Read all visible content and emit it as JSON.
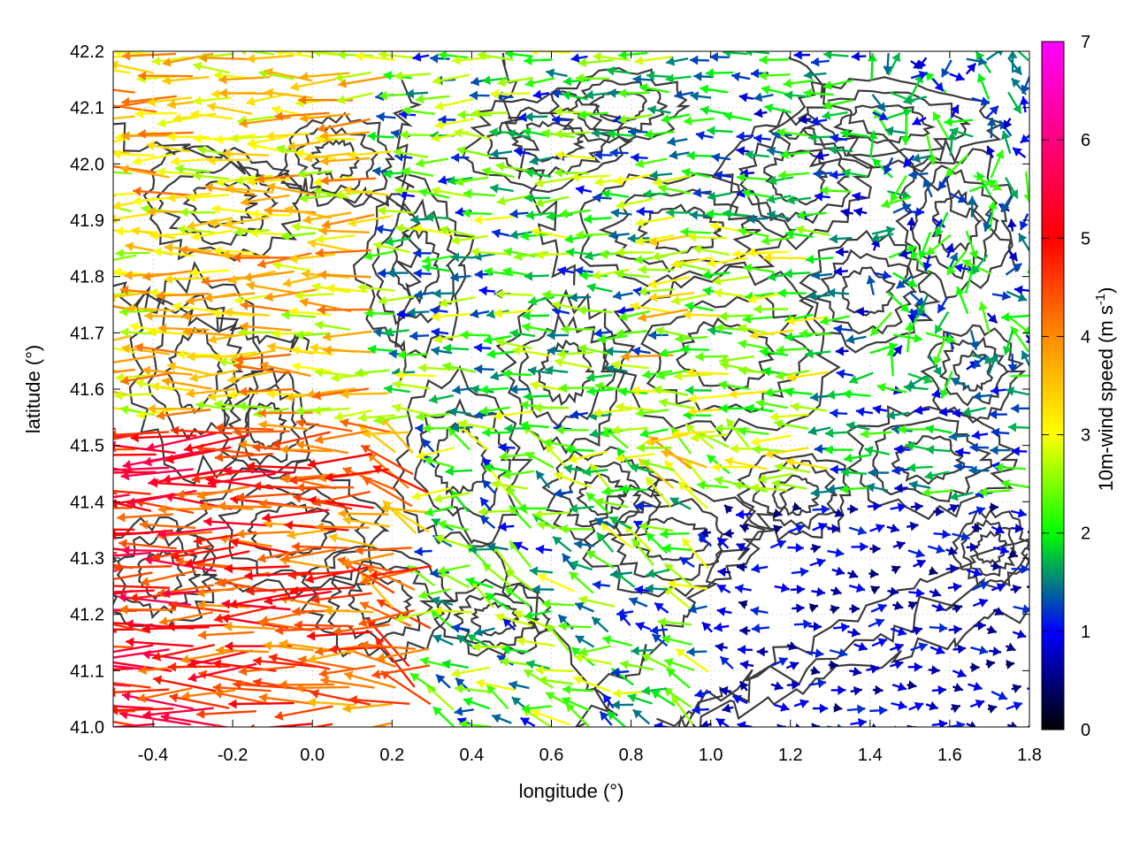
{
  "chart_data": {
    "type": "vector-field",
    "xlabel": "longitude (°)",
    "ylabel": "latitude (°)",
    "xlim": [
      -0.5,
      1.8
    ],
    "ylim": [
      41.0,
      42.2
    ],
    "xticks": [
      "-0.4",
      "-0.2",
      "0.0",
      "0.2",
      "0.4",
      "0.6",
      "0.8",
      "1.0",
      "1.2",
      "1.4",
      "1.6",
      "1.8"
    ],
    "yticks": [
      "41.0",
      "41.1",
      "41.2",
      "41.3",
      "41.4",
      "41.5",
      "41.6",
      "41.7",
      "41.8",
      "41.9",
      "42.0",
      "42.1",
      "42.2"
    ],
    "grid": true,
    "colorbar": {
      "label": "10m-wind speed (m s",
      "label_exponent": "-1",
      "label_close": ")",
      "range": [
        0,
        7
      ],
      "ticks": [
        "0",
        "1",
        "2",
        "3",
        "4",
        "5",
        "6",
        "7"
      ],
      "colormap": [
        "#000000",
        "#0000ff",
        "#00ff00",
        "#ffff00",
        "#ff8c00",
        "#ff0000",
        "#ff00ff"
      ]
    },
    "contour_color": "#3a3a3a",
    "wind_field_summary": [
      {
        "region": "west of 0.3°, 41.0–41.6",
        "speed_ms": 5.5,
        "direction": "westward"
      },
      {
        "region": "west of 0.2°, 41.6–42.2",
        "speed_ms": 3.5,
        "direction": "westward"
      },
      {
        "region": "center 0.3–1.0°",
        "speed_ms": 2.0,
        "direction": "westward / variable"
      },
      {
        "region": "east of 1.2°, south of 41.4",
        "speed_ms": 0.8,
        "direction": "eastward / calm"
      },
      {
        "region": "east of 1.4°, north of 41.7",
        "speed_ms": 1.5,
        "direction": "variable"
      }
    ]
  }
}
